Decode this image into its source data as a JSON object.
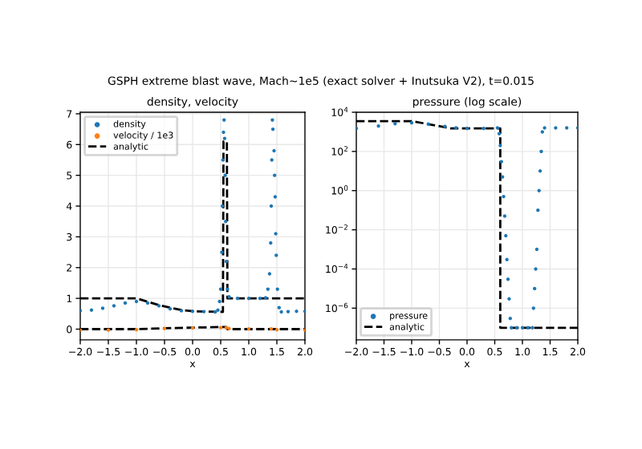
{
  "chart_data": [
    {
      "type": "scatter",
      "title": "density, velocity",
      "xlabel": "x",
      "annotations": [
        "GSPH extreme blast wave, Mach~1e5 (exact solver + Inutsuka V2), t=0.015"
      ],
      "xlim": [
        -2,
        2
      ],
      "ylim": [
        -0.35,
        7.05
      ],
      "xticks": [
        {
          "value": -2,
          "label": "−2.0"
        },
        {
          "value": -1.5,
          "label": "−1.5"
        },
        {
          "value": -1,
          "label": "−1.0"
        },
        {
          "value": -0.5,
          "label": "−0.5"
        },
        {
          "value": 0,
          "label": "0.0"
        },
        {
          "value": 0.5,
          "label": "0.5"
        },
        {
          "value": 1,
          "label": "1.0"
        },
        {
          "value": 1.5,
          "label": "1.5"
        },
        {
          "value": 2,
          "label": "2.0"
        }
      ],
      "yticks": [
        0,
        1,
        2,
        3,
        4,
        5,
        6,
        7
      ],
      "grid": true,
      "legend": "top left",
      "series": [
        {
          "name": "density",
          "marker": "circle",
          "color": "#1f77b4",
          "x": [
            -2,
            -1.8,
            -1.6,
            -1.4,
            -1.2,
            -1.0,
            -0.8,
            -0.6,
            -0.4,
            -0.2,
            0,
            0.2,
            0.4,
            0.45,
            0.48,
            0.5,
            0.52,
            0.53,
            0.54,
            0.55,
            0.56,
            0.57,
            0.58,
            0.59,
            0.6,
            0.62,
            0.65,
            0.8,
            1.0,
            1.2,
            1.3,
            1.34,
            1.37,
            1.39,
            1.4,
            1.41,
            1.42,
            1.43,
            1.45,
            1.46,
            1.47,
            1.48,
            1.49,
            1.51,
            1.54,
            1.58,
            1.7,
            1.85,
            2.0
          ],
          "values": [
            0.6,
            0.62,
            0.68,
            0.76,
            0.85,
            0.9,
            0.85,
            0.76,
            0.66,
            0.6,
            0.58,
            0.57,
            0.56,
            0.62,
            0.9,
            1.3,
            2.5,
            4,
            5.5,
            6.4,
            6.8,
            6.2,
            5.0,
            3.5,
            2.2,
            1.3,
            1.05,
            1.0,
            1.0,
            1.0,
            1.02,
            1.3,
            1.8,
            2.8,
            4.0,
            5.5,
            6.8,
            6.5,
            5.8,
            5.0,
            4.3,
            3.1,
            2.4,
            1.3,
            0.7,
            0.56,
            0.57,
            0.58,
            0.58
          ]
        },
        {
          "name": "velocity / 1e3",
          "marker": "circle",
          "color": "#ff7f0e",
          "x": [
            -2,
            -1.5,
            -1.0,
            -0.5,
            0,
            0.5,
            0.6,
            0.65,
            1.0,
            1.4,
            1.5,
            2
          ],
          "values": [
            -0.03,
            -0.03,
            -0.02,
            0.02,
            0.04,
            0.05,
            0.05,
            0.02,
            0.01,
            0.01,
            -0.02,
            -0.03
          ]
        },
        {
          "name": "analytic",
          "type": "line",
          "marker": "none",
          "line_style": "dashed",
          "color": "#000000",
          "x": [
            -2,
            -1.0,
            -0.6,
            -0.2,
            0.0,
            0.54,
            0.55,
            0.61,
            0.62,
            2.0
          ],
          "values": [
            1,
            1,
            0.78,
            0.62,
            0.58,
            0.56,
            6.1,
            6.1,
            1,
            1
          ]
        },
        {
          "type": "line",
          "marker": "none",
          "line_style": "dashed",
          "color": "#000000",
          "x": [
            -2,
            -1,
            -0.5,
            0,
            0.6,
            0.62,
            2
          ],
          "values": [
            0,
            0,
            0.03,
            0.05,
            0.07,
            0,
            0
          ]
        }
      ]
    },
    {
      "type": "scatter",
      "title": "pressure (log scale)",
      "xlabel": "x",
      "log": "y",
      "xlim": [
        -2,
        2
      ],
      "ylim": [
        2.4e-08,
        10000.0
      ],
      "xticks": [
        {
          "value": -2,
          "label": "−2.0"
        },
        {
          "value": -1.5,
          "label": "−1.5"
        },
        {
          "value": -1,
          "label": "−1.0"
        },
        {
          "value": -0.5,
          "label": "−0.5"
        },
        {
          "value": 0,
          "label": "0.0"
        },
        {
          "value": 0.5,
          "label": "0.5"
        },
        {
          "value": 1,
          "label": "1.0"
        },
        {
          "value": 1.5,
          "label": "1.5"
        },
        {
          "value": 2,
          "label": "2.0"
        }
      ],
      "yticks": [
        {
          "value": 1e-06,
          "label": "10$^{−6}$"
        },
        {
          "value": 0.0001,
          "label": "10$^{−4}$"
        },
        {
          "value": 0.01,
          "label": "10$^{−2}$"
        },
        {
          "value": 1,
          "label": "10$^{0}$"
        },
        {
          "value": 100,
          "label": "10$^{2}$"
        },
        {
          "value": 10000,
          "label": "10$^{4}$"
        }
      ],
      "grid": true,
      "legend": "bottom left",
      "series": [
        {
          "name": "pressure",
          "marker": "circle",
          "color": "#1f77b4",
          "x": [
            -2,
            -1.6,
            -1.3,
            -1.0,
            -0.7,
            -0.4,
            -0.2,
            0,
            0.3,
            0.55,
            0.58,
            0.6,
            0.62,
            0.64,
            0.66,
            0.68,
            0.7,
            0.72,
            0.74,
            0.76,
            0.78,
            0.8,
            0.9,
            1.0,
            1.1,
            1.18,
            1.2,
            1.22,
            1.24,
            1.26,
            1.28,
            1.3,
            1.32,
            1.34,
            1.36,
            1.4,
            1.6,
            1.8,
            2.0
          ],
          "values": [
            1500,
            2000,
            2600,
            2900,
            2500,
            1900,
            1600,
            1500,
            1500,
            1600,
            800,
            200,
            30,
            5,
            0.5,
            0.05,
            0.005,
            0.0003,
            3e-05,
            3e-06,
            3e-07,
            1e-07,
            1e-07,
            1e-07,
            1e-07,
            1e-07,
            1e-06,
            1e-05,
            0.0001,
            0.001,
            0.1,
            1,
            10,
            100,
            1000,
            1600,
            1600,
            1600,
            1600
          ]
        },
        {
          "name": "analytic",
          "type": "line",
          "marker": "none",
          "line_style": "dashed",
          "color": "#000000",
          "x": [
            -2,
            -1,
            -0.6,
            -0.3,
            0.6,
            0.6,
            2
          ],
          "values": [
            3500,
            3500,
            2200,
            1500,
            1500,
            1e-07,
            1e-07
          ]
        }
      ]
    }
  ]
}
